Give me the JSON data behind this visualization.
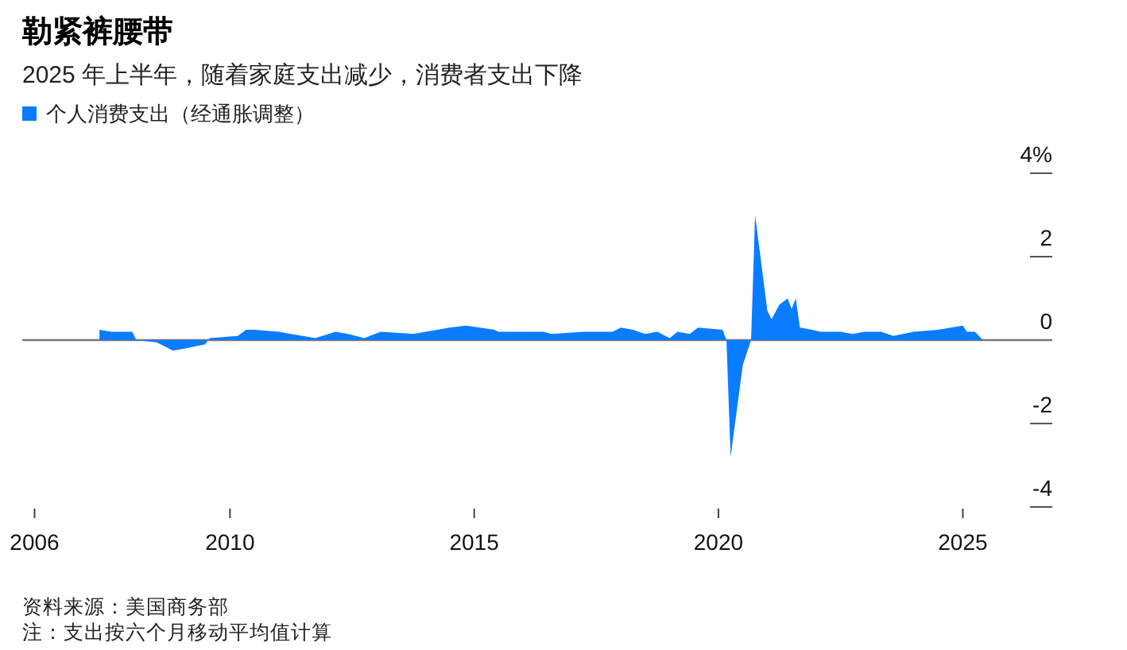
{
  "chart_data": {
    "type": "area",
    "title": "勒紧裤腰带",
    "subtitle": "2025 年上半年，随着家庭支出减少，消费者支出下降",
    "x": [
      "2007-05",
      "2007-08",
      "2008-01",
      "2008-02",
      "2008-07",
      "2008-11",
      "2009-02",
      "2009-07",
      "2009-08",
      "2010-03",
      "2010-05",
      "2010-07",
      "2011-01",
      "2011-04",
      "2011-10",
      "2012-03",
      "2012-06",
      "2012-10",
      "2013-02",
      "2013-10",
      "2014-04",
      "2014-07",
      "2014-11",
      "2015-06",
      "2015-07",
      "2016-06",
      "2016-08",
      "2017-04",
      "2017-11",
      "2018-01",
      "2018-04",
      "2018-07",
      "2018-10",
      "2019-01",
      "2019-03",
      "2019-06",
      "2019-08",
      "2020-02",
      "2020-03",
      "2020-04",
      "2020-07",
      "2020-08",
      "2020-09",
      "2020-10",
      "2021-01",
      "2021-02",
      "2021-04",
      "2021-06",
      "2021-07",
      "2021-08",
      "2021-09",
      "2021-12",
      "2022-02",
      "2022-07",
      "2022-10",
      "2023-01",
      "2023-05",
      "2023-08",
      "2024-01",
      "2024-07",
      "2025-01",
      "2025-02",
      "2025-04",
      "2025-06"
    ],
    "series": [
      {
        "name": "个人消费支出（经通胀调整）",
        "color": "#0a7cff",
        "values": [
          0.25,
          0.2,
          0.2,
          0,
          -0.05,
          -0.25,
          -0.2,
          -0.1,
          0.05,
          0.1,
          0.25,
          0.25,
          0.2,
          0.15,
          0.05,
          0.2,
          0.15,
          0.05,
          0.2,
          0.15,
          0.25,
          0.3,
          0.35,
          0.25,
          0.2,
          0.2,
          0.15,
          0.2,
          0.2,
          0.3,
          0.25,
          0.15,
          0.2,
          0.05,
          0.2,
          0.15,
          0.3,
          0.25,
          0,
          -2.8,
          -0.6,
          -0.3,
          0,
          3.0,
          0.7,
          0.5,
          0.85,
          1.0,
          0.75,
          1.0,
          0.3,
          0.25,
          0.2,
          0.2,
          0.15,
          0.2,
          0.2,
          0.1,
          0.2,
          0.25,
          0.35,
          0.2,
          0.2,
          0
        ]
      }
    ],
    "xlim": [
      "2005-10",
      "2026-11"
    ],
    "xticks": [
      {
        "value": "2006",
        "label": "2006"
      },
      {
        "value": "2010",
        "label": "2010"
      },
      {
        "value": "2015",
        "label": "2015"
      },
      {
        "value": "2020",
        "label": "2020"
      },
      {
        "value": "2025",
        "label": "2025"
      }
    ],
    "ylim": [
      -4,
      4
    ],
    "yticks": [
      {
        "value": 4,
        "label": "4%"
      },
      2,
      0,
      -2,
      -4
    ],
    "legend": "top left",
    "annotations": [
      "资料来源：美国商务部",
      "注：支出按六个月移动平均值计算"
    ]
  }
}
